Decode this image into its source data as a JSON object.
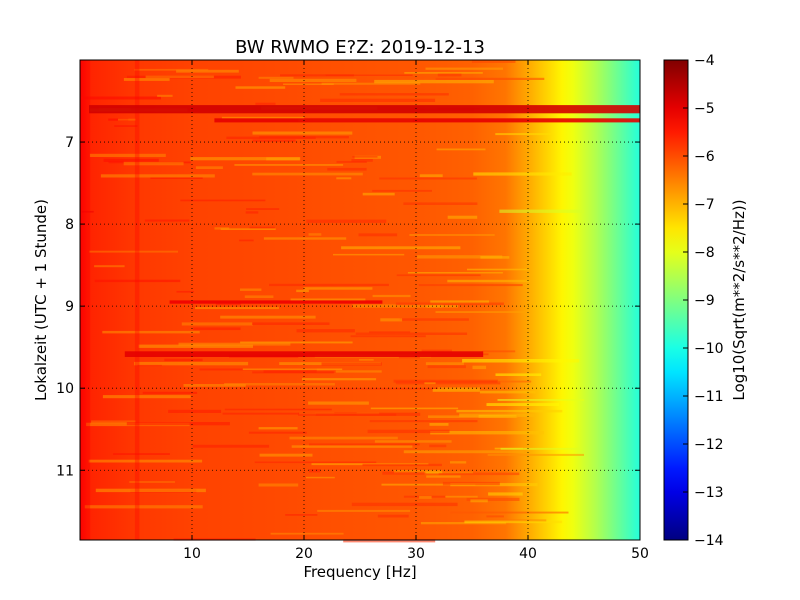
{
  "chart_data": {
    "type": "heatmap",
    "title": "BW RWMO E?Z: 2019-12-13",
    "xlabel": "Frequency [Hz]",
    "ylabel": "Lokalzeit (UTC + 1 Stunde)",
    "xlim": [
      0,
      50
    ],
    "ylim": [
      11.85,
      6.0
    ],
    "y_inverted": true,
    "x_ticks": [
      10,
      20,
      30,
      40,
      50
    ],
    "y_ticks": [
      7,
      8,
      9,
      10,
      11
    ],
    "grid": true,
    "colormap": "jet",
    "colorbar": {
      "label": "Log10(Sqrt(m**2/s**2/Hz))",
      "min": -14,
      "max": -4,
      "ticks": [
        -4,
        -5,
        -6,
        -7,
        -8,
        -9,
        -10,
        -11,
        -12,
        -13,
        -14
      ]
    },
    "frequency_profile": {
      "frequency_hz": [
        0,
        1,
        5,
        10,
        20,
        30,
        35,
        38,
        40,
        42,
        44,
        46,
        48,
        50
      ],
      "log10_amplitude": [
        -5.2,
        -5.6,
        -5.8,
        -5.9,
        -6.0,
        -6.1,
        -6.2,
        -6.4,
        -6.9,
        -7.4,
        -7.9,
        -8.5,
        -9.2,
        -9.9
      ]
    },
    "high_amplitude_bands": [
      {
        "time_start": 6.55,
        "time_end": 6.65,
        "freq_start": 0.8,
        "freq_end": 50,
        "log10_amplitude": -4.8
      },
      {
        "time_start": 6.71,
        "time_end": 6.76,
        "freq_start": 12,
        "freq_end": 50,
        "log10_amplitude": -5.0
      },
      {
        "time_start": 8.93,
        "time_end": 8.97,
        "freq_start": 8,
        "freq_end": 27,
        "log10_amplitude": -5.1
      },
      {
        "time_start": 9.55,
        "time_end": 9.62,
        "freq_start": 4,
        "freq_end": 36,
        "log10_amplitude": -5.0
      }
    ]
  }
}
